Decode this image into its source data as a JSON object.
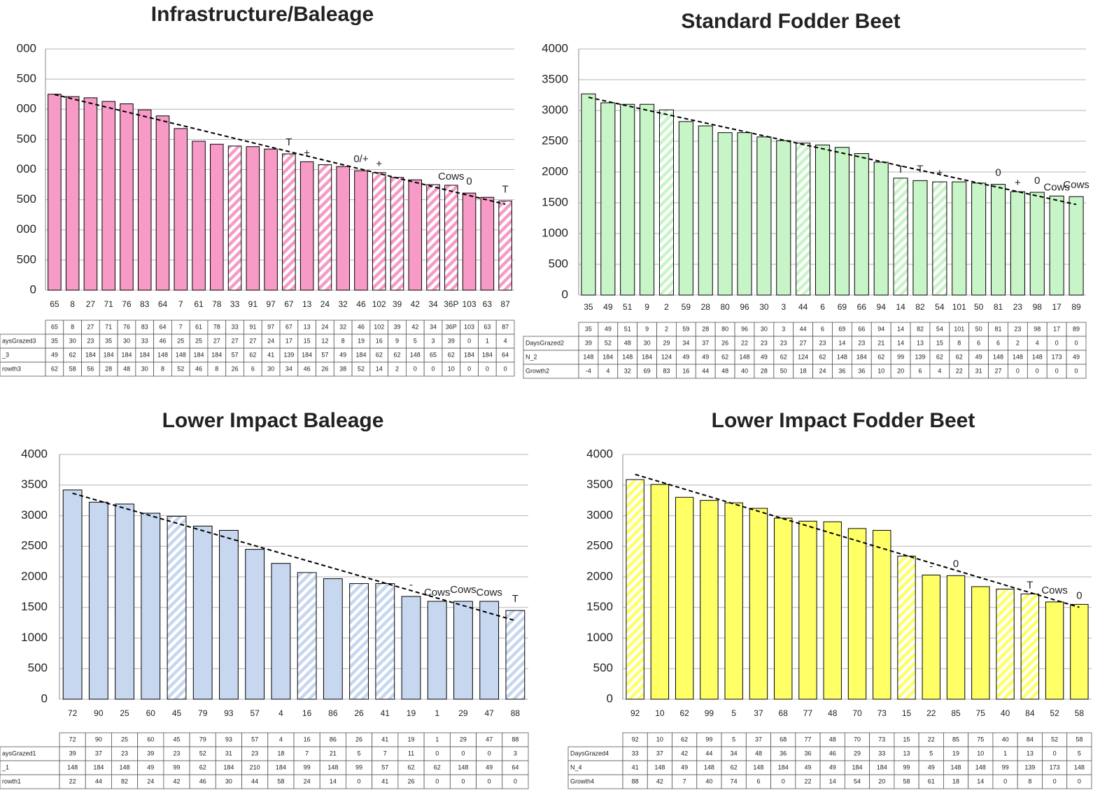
{
  "chart_data": [
    {
      "type": "bar",
      "title": "Infrastructure/Baleage",
      "categories": [
        "65",
        "8",
        "27",
        "71",
        "76",
        "83",
        "64",
        "7",
        "61",
        "78",
        "33",
        "91",
        "97",
        "67",
        "13",
        "24",
        "32",
        "46",
        "102",
        "39",
        "42",
        "34",
        "36P",
        "103",
        "63",
        "87"
      ],
      "values": [
        3250,
        3210,
        3190,
        3130,
        3090,
        2990,
        2890,
        2680,
        2470,
        2420,
        2390,
        2380,
        2340,
        2260,
        2130,
        2080,
        2050,
        1980,
        1950,
        1870,
        1830,
        1750,
        1740,
        1610,
        1540,
        1480
      ],
      "hatched": [
        false,
        false,
        false,
        false,
        false,
        false,
        false,
        false,
        false,
        false,
        true,
        false,
        false,
        true,
        false,
        true,
        false,
        false,
        true,
        true,
        false,
        true,
        true,
        false,
        false,
        true
      ],
      "annotations": [
        null,
        null,
        null,
        null,
        null,
        null,
        null,
        null,
        null,
        null,
        null,
        null,
        null,
        "T",
        "+",
        null,
        null,
        "0/+",
        "+",
        null,
        null,
        null,
        "Cows",
        "0",
        null,
        "T"
      ],
      "color": "#f79ac6",
      "grid": true,
      "trendline": true,
      "ylim": [
        0,
        4000
      ],
      "yticks": [
        0,
        500,
        {
          "value": 1000,
          "label": "000"
        },
        {
          "value": 1500,
          "label": "500"
        },
        {
          "value": 2000,
          "label": "000"
        },
        {
          "value": 2500,
          "label": "500"
        },
        {
          "value": 3000,
          "label": "000"
        },
        {
          "value": 3500,
          "label": "500"
        },
        {
          "value": 4000,
          "label": "000"
        }
      ],
      "table": {
        "rows": [
          {
            "label": "aysGrazed3",
            "values": [
              35,
              30,
              23,
              35,
              30,
              33,
              46,
              25,
              25,
              27,
              27,
              27,
              24,
              17,
              15,
              12,
              8,
              19,
              16,
              9,
              5,
              3,
              39,
              0,
              1,
              4
            ]
          },
          {
            "label": "_3",
            "values": [
              49,
              62,
              184,
              184,
              184,
              184,
              148,
              148,
              184,
              184,
              57,
              62,
              41,
              139,
              184,
              57,
              49,
              184,
              62,
              62,
              148,
              65,
              62,
              184,
              184,
              64
            ]
          },
          {
            "label": "rowth3",
            "values": [
              62,
              58,
              56,
              28,
              48,
              30,
              8,
              52,
              46,
              8,
              26,
              6,
              30,
              34,
              46,
              26,
              38,
              52,
              14,
              2,
              0,
              0,
              10,
              0,
              0,
              0
            ]
          }
        ]
      }
    },
    {
      "type": "bar",
      "title": "Standard Fodder Beet",
      "categories": [
        "35",
        "49",
        "51",
        "9",
        "2",
        "59",
        "28",
        "80",
        "96",
        "30",
        "3",
        "44",
        "6",
        "69",
        "66",
        "94",
        "14",
        "82",
        "54",
        "101",
        "50",
        "81",
        "23",
        "98",
        "17",
        "89"
      ],
      "values": [
        3270,
        3125,
        3100,
        3100,
        3010,
        2820,
        2750,
        2640,
        2640,
        2570,
        2510,
        2470,
        2440,
        2400,
        2300,
        2160,
        1900,
        1860,
        1840,
        1840,
        1820,
        1800,
        1680,
        1670,
        1610,
        1600
      ],
      "hatched": [
        false,
        false,
        false,
        false,
        true,
        false,
        false,
        false,
        false,
        false,
        false,
        true,
        false,
        false,
        false,
        false,
        true,
        false,
        true,
        false,
        false,
        false,
        false,
        false,
        false,
        false
      ],
      "annotations": [
        null,
        null,
        null,
        null,
        null,
        null,
        null,
        null,
        null,
        null,
        null,
        null,
        null,
        null,
        null,
        null,
        "T",
        "T",
        "+",
        null,
        null,
        "0",
        "+",
        "0",
        "Cows",
        "Cows"
      ],
      "color": "#c8f5c8",
      "grid": true,
      "trendline": true,
      "ylim": [
        0,
        4000
      ],
      "yticks": [
        0,
        500,
        1000,
        1500,
        2000,
        2500,
        3000,
        3500,
        4000
      ],
      "table": {
        "rows": [
          {
            "label": "DaysGrazed2",
            "values": [
              39,
              52,
              48,
              30,
              29,
              34,
              37,
              26,
              22,
              23,
              23,
              27,
              23,
              14,
              23,
              21,
              14,
              13,
              15,
              8,
              6,
              6,
              2,
              4,
              0,
              0
            ]
          },
          {
            "label": "N_2",
            "values": [
              148,
              184,
              148,
              184,
              124,
              49,
              49,
              62,
              148,
              49,
              62,
              124,
              62,
              148,
              184,
              62,
              99,
              139,
              62,
              62,
              49,
              148,
              148,
              148,
              173,
              49
            ]
          },
          {
            "label": "Growth2",
            "values": [
              -4,
              4,
              32,
              69,
              83,
              16,
              44,
              48,
              40,
              28,
              50,
              18,
              24,
              36,
              36,
              10,
              20,
              6,
              4,
              22,
              31,
              27,
              0,
              0,
              0,
              0
            ]
          }
        ]
      }
    },
    {
      "type": "bar",
      "title": "Lower Impact Baleage",
      "categories": [
        "72",
        "90",
        "25",
        "60",
        "45",
        "79",
        "93",
        "57",
        "4",
        "16",
        "86",
        "26",
        "41",
        "19",
        "1",
        "29",
        "47",
        "88"
      ],
      "values": [
        3420,
        3220,
        3190,
        3040,
        2990,
        2830,
        2760,
        2450,
        2220,
        2070,
        1970,
        1890,
        1890,
        1680,
        1600,
        1600,
        1600,
        1450
      ],
      "hatched": [
        false,
        false,
        false,
        false,
        true,
        false,
        false,
        false,
        false,
        true,
        false,
        true,
        true,
        false,
        false,
        false,
        false,
        true
      ],
      "annotations": [
        null,
        null,
        null,
        null,
        null,
        null,
        null,
        null,
        null,
        null,
        null,
        null,
        null,
        "-",
        "Cows",
        "Cows",
        "Cows",
        "T"
      ],
      "color": "#c6d7ef",
      "grid": true,
      "trendline": true,
      "ylim": [
        0,
        4000
      ],
      "yticks": [
        0,
        500,
        1000,
        1500,
        2000,
        2500,
        3000,
        3500,
        4000
      ],
      "table": {
        "rows": [
          {
            "label": "aysGrazed1",
            "values": [
              39,
              37,
              23,
              39,
              23,
              52,
              31,
              23,
              18,
              7,
              21,
              5,
              7,
              11,
              0,
              0,
              0,
              3
            ]
          },
          {
            "label": "_1",
            "values": [
              148,
              184,
              148,
              49,
              99,
              62,
              184,
              210,
              184,
              99,
              148,
              99,
              57,
              62,
              62,
              148,
              49,
              64
            ]
          },
          {
            "label": "rowth1",
            "values": [
              22,
              44,
              82,
              24,
              42,
              46,
              30,
              44,
              58,
              24,
              14,
              0,
              41,
              26,
              0,
              0,
              0,
              0
            ]
          }
        ]
      }
    },
    {
      "type": "bar",
      "title": "Lower Impact Fodder Beet",
      "categories": [
        "92",
        "10",
        "62",
        "99",
        "5",
        "37",
        "68",
        "77",
        "48",
        "70",
        "73",
        "15",
        "22",
        "85",
        "75",
        "40",
        "84",
        "52",
        "58"
      ],
      "values": [
        3590,
        3510,
        3300,
        3250,
        3210,
        3120,
        2960,
        2910,
        2900,
        2790,
        2760,
        2340,
        2030,
        2020,
        1840,
        1800,
        1720,
        1590,
        1550
      ],
      "hatched": [
        true,
        false,
        false,
        false,
        false,
        false,
        false,
        false,
        false,
        false,
        false,
        true,
        false,
        false,
        false,
        true,
        true,
        false,
        false
      ],
      "annotations": [
        null,
        null,
        null,
        null,
        null,
        null,
        null,
        null,
        null,
        null,
        null,
        null,
        "-",
        "0",
        null,
        null,
        "T",
        "Cows",
        "0"
      ],
      "color": "#ffff66",
      "grid": true,
      "trendline": true,
      "ylim": [
        0,
        4000
      ],
      "yticks": [
        0,
        500,
        1000,
        1500,
        2000,
        2500,
        3000,
        3500,
        4000
      ],
      "table": {
        "rows": [
          {
            "label": "DaysGrazed4",
            "values": [
              33,
              37,
              42,
              44,
              34,
              48,
              36,
              36,
              46,
              29,
              33,
              13,
              5,
              19,
              10,
              1,
              13,
              0,
              5
            ]
          },
          {
            "label": "N_4",
            "values": [
              41,
              148,
              49,
              148,
              62,
              148,
              184,
              49,
              49,
              184,
              184,
              99,
              49,
              148,
              148,
              99,
              139,
              173,
              148
            ]
          },
          {
            "label": "Growth4",
            "values": [
              88,
              42,
              7,
              40,
              74,
              6,
              0,
              22,
              14,
              54,
              20,
              58,
              61,
              18,
              14,
              0,
              8,
              0,
              0
            ]
          }
        ]
      }
    }
  ]
}
